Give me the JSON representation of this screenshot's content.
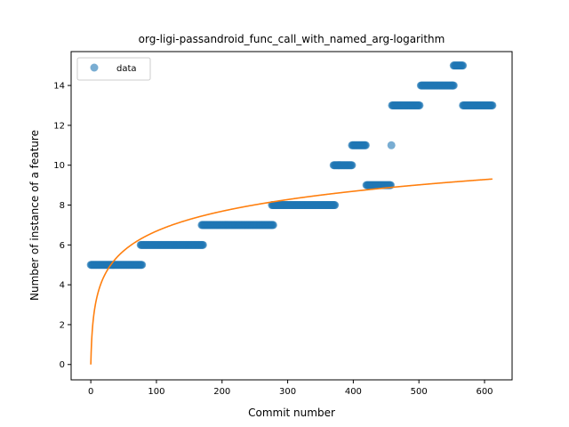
{
  "chart_data": {
    "type": "scatter",
    "title": "org-ligi-passandroid_func_call_with_named_arg-logarithm",
    "xlabel": "Commit number",
    "ylabel": "Number of instance of a feature",
    "xlim": [
      -30,
      642
    ],
    "ylim": [
      -0.77,
      15.7
    ],
    "xticks": [
      0,
      100,
      200,
      300,
      400,
      500,
      600
    ],
    "yticks": [
      0,
      2,
      4,
      6,
      8,
      10,
      12,
      14
    ],
    "grid": false,
    "legend": {
      "position": "top-left",
      "entries": [
        "data"
      ]
    },
    "colors": {
      "data": "#1f77b4",
      "fit": "#ff7f0e"
    },
    "series": [
      {
        "name": "data",
        "kind": "scatter",
        "segments": [
          {
            "x_start": 0,
            "x_end": 78,
            "y": 5
          },
          {
            "x_start": 76,
            "x_end": 171,
            "y": 6
          },
          {
            "x_start": 169,
            "x_end": 278,
            "y": 7
          },
          {
            "x_start": 276,
            "x_end": 372,
            "y": 8
          },
          {
            "x_start": 370,
            "x_end": 398,
            "y": 10
          },
          {
            "x_start": 398,
            "x_end": 419,
            "y": 11
          },
          {
            "x_start": 420,
            "x_end": 457,
            "y": 9
          },
          {
            "x_start": 458,
            "x_end": 458,
            "y": 11
          },
          {
            "x_start": 459,
            "x_end": 501,
            "y": 13
          },
          {
            "x_start": 503,
            "x_end": 553,
            "y": 14
          },
          {
            "x_start": 553,
            "x_end": 567,
            "y": 15
          },
          {
            "x_start": 567,
            "x_end": 612,
            "y": 13
          }
        ]
      },
      {
        "kind": "line",
        "model": "logarithmic",
        "a": 1.45,
        "b": 1.25,
        "x_range": [
          0,
          612
        ]
      }
    ]
  }
}
